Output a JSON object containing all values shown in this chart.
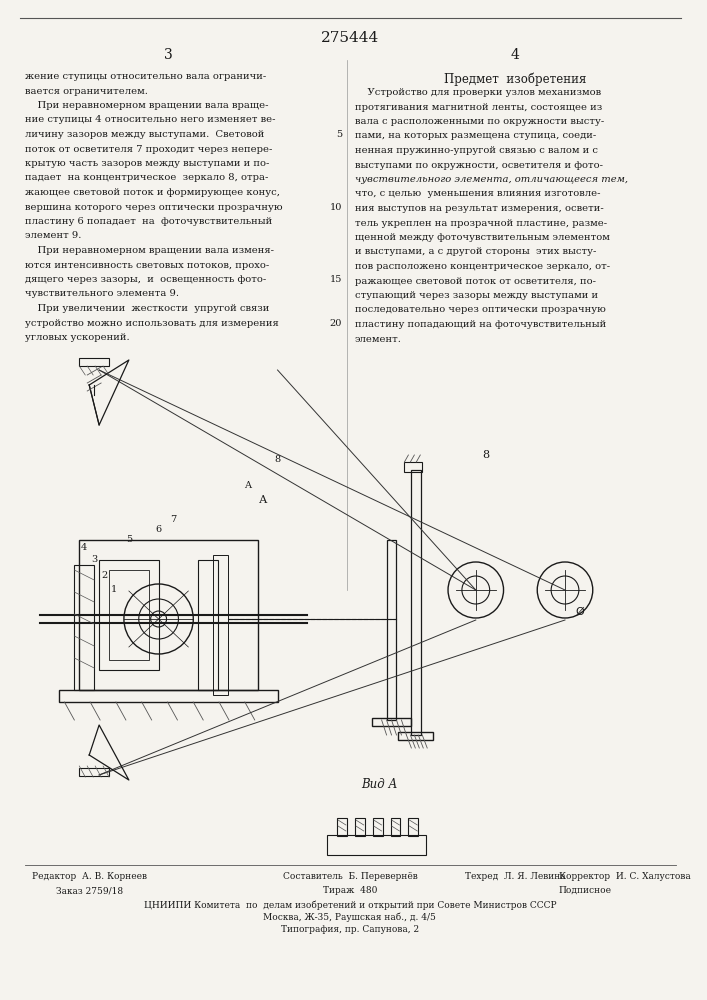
{
  "patent_number": "275444",
  "page_numbers": [
    "3",
    "4"
  ],
  "left_column_text": [
    "жение ступицы относительно вала ограничи-",
    "вается ограничителем.",
    "    При неравномерном вращении вала враще-",
    "ние ступицы 4 относительно него изменяет ве-",
    "личину зазоров между выступами.  Световой",
    "поток от осветителя 7 проходит через непере-",
    "крытую часть зазоров между выступами и по-",
    "падает  на концентрическое  зеркало 8, отра-",
    "жающее световой поток и формирующее конус,",
    "вершина которого через оптически прозрачную",
    "пластину 6 попадает  на  фоточувствительный",
    "элемент 9.",
    "    При неравномерном вращении вала изменя-",
    "ются интенсивность световых потоков, прохо-",
    "дящего через зазоры,  и  освещенность фото-",
    "чувствительного элемента 9.",
    "    При увеличении  жесткости  упругой связи",
    "устройство можно использовать для измерения",
    "угловых ускорений."
  ],
  "right_column_header": "Предмет  изобретения",
  "line_numbers": [
    "5",
    "10",
    "15",
    "20"
  ],
  "right_column_text": [
    "    Устройство для проверки узлов механизмов",
    "протягивания магнитной ленты, состоящее из",
    "вала с расположенными по окружности высту-",
    "пами, на которых размещена ступица, соеди-",
    "ненная пружинно-упругой связью с валом и с",
    "выступами по окружности, осветителя и фото-",
    "чувствительного элемента, отличающееся тем,",
    "что, с целью  уменьшения влияния изготовле-",
    "ния выступов на результат измерения, освети-",
    "тель укреплен на прозрачной пластине, разме-",
    "щенной между фоточувствительным элементом",
    "и выступами, а с другой стороны  этих высту-",
    "пов расположено концентрическое зеркало, от-",
    "ражающее световой поток от осветителя, по-",
    "ступающий через зазоры между выступами и",
    "последовательно через оптически прозрачную",
    "пластину попадающий на фоточувствительный",
    "элемент."
  ],
  "footer_texts": [
    "Редактор  А. В. Корнеев",
    "Составитель  Б. Перевернёв",
    "Техред  Л. Я. Левина",
    "Корректор  И. С. Халустова",
    "Заказ 2759/18",
    "Тираж  480",
    "Подписное",
    "ЦНИИПИ Комитета  по  делам изобретений и открытий при Совете Министров СССР",
    "Москва, Ж-35, Раушская наб., д. 4/5",
    "Типография, пр. Сапунова, 2"
  ],
  "bg_color": "#f5f3ee",
  "text_color": "#1a1a1a",
  "line_color": "#888888"
}
